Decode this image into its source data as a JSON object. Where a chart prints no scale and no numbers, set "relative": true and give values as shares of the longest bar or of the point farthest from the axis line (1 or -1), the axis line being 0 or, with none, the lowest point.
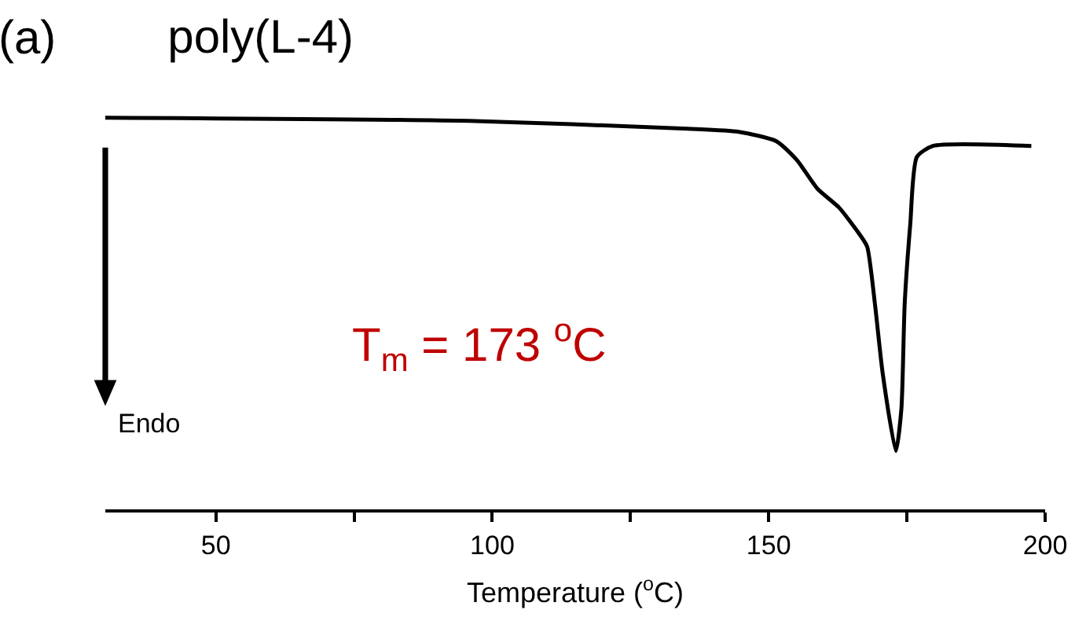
{
  "chart_data": {
    "type": "line",
    "relative": true,
    "title": "poly(L-4)",
    "xlabel": "Temperature ($^{o}$C)",
    "annotations": [
      "(a)",
      "T$_{m}$ = 173 $^{o}$C",
      "Endo"
    ],
    "xlim": [
      30,
      200
    ],
    "xticks": [
      50,
      {
        "value": 75,
        "label": null
      },
      100,
      {
        "value": 125,
        "label": null
      },
      150,
      {
        "value": 175,
        "label": null
      },
      200
    ],
    "marker": "none",
    "line_style": "solid",
    "series": [
      {
        "color": "#000000",
        "x": [
          30.0,
          95.8,
          135.3,
          144.6,
          151.4,
          155.1,
          158.8,
          162.7,
          166.4,
          167.8,
          169.2,
          170.6,
          173.0,
          174.0,
          174.6,
          175.6,
          176.8,
          179.7,
          197.5
        ],
        "values": [
          1.0,
          0.992,
          0.972,
          0.964,
          0.94,
          0.892,
          0.819,
          0.771,
          0.703,
          0.671,
          0.526,
          0.349,
          0.149,
          0.257,
          0.526,
          0.727,
          0.9,
          0.928,
          0.928
        ]
      }
    ]
  }
}
